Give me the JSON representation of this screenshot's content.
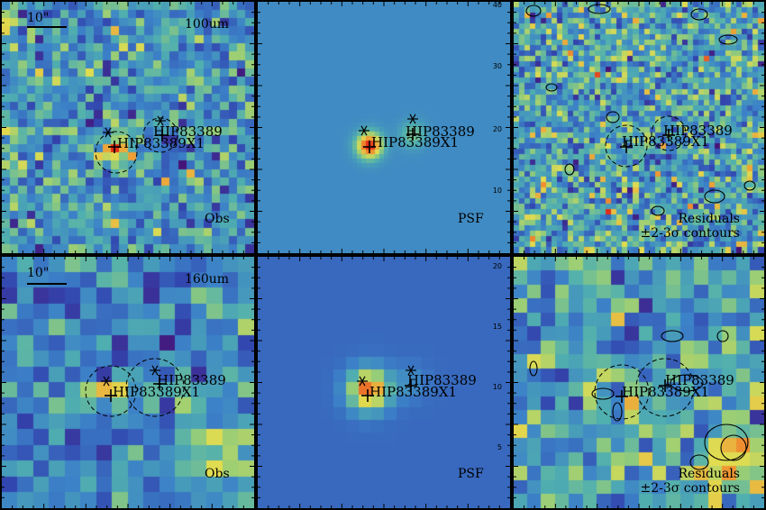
{
  "rows": [
    {
      "band": "100um",
      "scalebar": "10\"",
      "obs_label": "Obs",
      "psf_label": "PSF",
      "residual_label_1": "Residuals",
      "residual_label_2": "±2-3σ contours",
      "sources": [
        "HIP83389",
        "HIP83389X1"
      ],
      "psf_axis_ticks": [
        "40",
        "30",
        "20",
        "10"
      ]
    },
    {
      "band": "160um",
      "scalebar": "10\"",
      "obs_label": "Obs",
      "psf_label": "PSF",
      "residual_label_1": "Residuals",
      "residual_label_2": "±2-3σ contours",
      "sources": [
        "HIP83389",
        "HIP83389X1"
      ],
      "psf_axis_ticks": [
        "20",
        "15",
        "10",
        "5"
      ]
    }
  ],
  "colors": {
    "background_blue": "#3b78c8",
    "psf_blue": "#4a9ad0",
    "peak_red": "#e83a1e",
    "contour": "#000000"
  }
}
